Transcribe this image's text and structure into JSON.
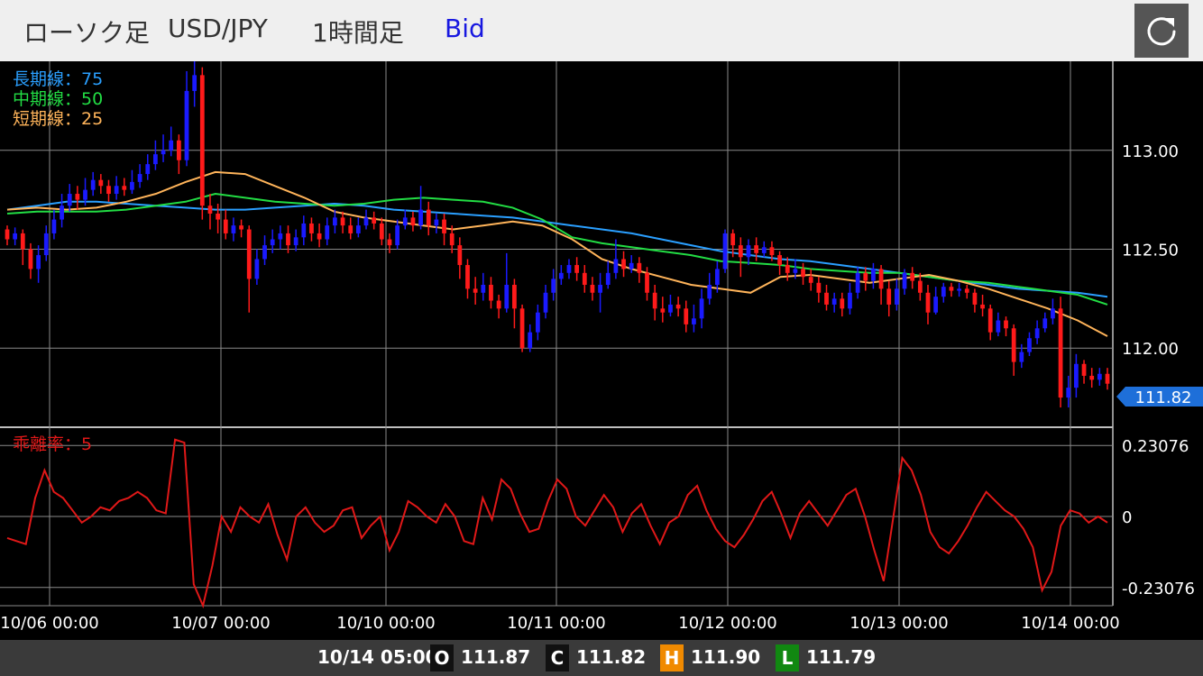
{
  "header": {
    "chart_kind": "ローソク足",
    "pair": "USD/JPY",
    "timeframe": "1時間足",
    "price_type": "Bid",
    "refresh_icon": "refresh-icon"
  },
  "legend": {
    "long_ma": "長期線：75",
    "mid_ma": "中期線：50",
    "short_ma": "短期線：25",
    "deviation": "乖離率：5"
  },
  "current_price_tag": "111.82",
  "footer": {
    "datetime": "10/14 05:00",
    "open_badge": "O",
    "open": "111.87",
    "close_badge": "C",
    "close": "111.82",
    "high_badge": "H",
    "high": "111.90",
    "low_badge": "L",
    "low": "111.79"
  },
  "colors": {
    "up": "#1a1aff",
    "down": "#ff1a1a",
    "long_ma": "#2a9fff",
    "mid_ma": "#22dd44",
    "short_ma": "#ffb45a",
    "deviation_line": "#e01818",
    "grid": "#8a8a8a",
    "tag": "#1e6fd9"
  },
  "chart_data": [
    {
      "type": "candlestick",
      "x_tick_labels": [
        "10/06 00:00",
        "10/07 00:00",
        "10/10 00:00",
        "10/11 00:00",
        "10/12 00:00",
        "10/13 00:00",
        "10/14 00:00"
      ],
      "y_tick_labels": [
        "113.00",
        "112.50",
        "112.00"
      ],
      "y_ticks": [
        113.0,
        112.5,
        112.0
      ],
      "ylim": [
        111.6,
        113.45
      ],
      "candles": [
        [
          112.6,
          112.55,
          112.62,
          112.52
        ],
        [
          112.55,
          112.58,
          112.61,
          112.52
        ],
        [
          112.58,
          112.5,
          112.6,
          112.42
        ],
        [
          112.5,
          112.4,
          112.53,
          112.35
        ],
        [
          112.4,
          112.47,
          112.52,
          112.33
        ],
        [
          112.47,
          112.58,
          112.62,
          112.44
        ],
        [
          112.58,
          112.65,
          112.7,
          112.55
        ],
        [
          112.65,
          112.72,
          112.78,
          112.61
        ],
        [
          112.72,
          112.78,
          112.83,
          112.69
        ],
        [
          112.78,
          112.75,
          112.82,
          112.7
        ],
        [
          112.75,
          112.8,
          112.86,
          112.72
        ],
        [
          112.8,
          112.85,
          112.89,
          112.77
        ],
        [
          112.85,
          112.82,
          112.88,
          112.78
        ],
        [
          112.82,
          112.78,
          112.85,
          112.74
        ],
        [
          112.78,
          112.82,
          112.87,
          112.75
        ],
        [
          112.82,
          112.8,
          112.86,
          112.77
        ],
        [
          112.8,
          112.84,
          112.9,
          112.78
        ],
        [
          112.84,
          112.88,
          112.93,
          112.81
        ],
        [
          112.88,
          112.93,
          112.98,
          112.85
        ],
        [
          112.93,
          112.98,
          113.05,
          112.9
        ],
        [
          112.98,
          113.0,
          113.08,
          112.94
        ],
        [
          113.0,
          113.05,
          113.12,
          112.97
        ],
        [
          113.05,
          112.95,
          113.08,
          112.88
        ],
        [
          112.95,
          113.3,
          113.4,
          112.92
        ],
        [
          113.3,
          113.38,
          113.45,
          113.22
        ],
        [
          113.38,
          112.72,
          113.42,
          112.65
        ],
        [
          112.72,
          112.68,
          112.78,
          112.6
        ],
        [
          112.68,
          112.65,
          112.73,
          112.58
        ],
        [
          112.65,
          112.58,
          112.7,
          112.55
        ],
        [
          112.58,
          112.62,
          112.66,
          112.54
        ],
        [
          112.62,
          112.6,
          112.65,
          112.56
        ],
        [
          112.6,
          112.35,
          112.62,
          112.18
        ],
        [
          112.35,
          112.45,
          112.5,
          112.32
        ],
        [
          112.45,
          112.52,
          112.57,
          112.42
        ],
        [
          112.52,
          112.55,
          112.6,
          112.48
        ],
        [
          112.55,
          112.58,
          112.62,
          112.5
        ],
        [
          112.58,
          112.52,
          112.62,
          112.48
        ],
        [
          112.52,
          112.56,
          112.6,
          112.49
        ],
        [
          112.56,
          112.63,
          112.67,
          112.52
        ],
        [
          112.63,
          112.58,
          112.66,
          112.54
        ],
        [
          112.58,
          112.55,
          112.63,
          112.51
        ],
        [
          112.55,
          112.62,
          112.66,
          112.52
        ],
        [
          112.62,
          112.66,
          112.7,
          112.58
        ],
        [
          112.66,
          112.62,
          112.69,
          112.58
        ],
        [
          112.62,
          112.58,
          112.66,
          112.55
        ],
        [
          112.58,
          112.62,
          112.66,
          112.56
        ],
        [
          112.62,
          112.66,
          112.7,
          112.6
        ],
        [
          112.66,
          112.63,
          112.69,
          112.6
        ],
        [
          112.63,
          112.55,
          112.66,
          112.52
        ],
        [
          112.55,
          112.52,
          112.58,
          112.48
        ],
        [
          112.52,
          112.62,
          112.65,
          112.5
        ],
        [
          112.62,
          112.66,
          112.7,
          112.6
        ],
        [
          112.66,
          112.62,
          112.69,
          112.59
        ],
        [
          112.62,
          112.7,
          112.82,
          112.6
        ],
        [
          112.7,
          112.62,
          112.74,
          112.57
        ],
        [
          112.62,
          112.65,
          112.68,
          112.58
        ],
        [
          112.65,
          112.58,
          112.68,
          112.52
        ],
        [
          112.58,
          112.52,
          112.62,
          112.48
        ],
        [
          112.52,
          112.42,
          112.56,
          112.35
        ],
        [
          112.42,
          112.3,
          112.45,
          112.25
        ],
        [
          112.3,
          112.28,
          112.36,
          112.22
        ],
        [
          112.28,
          112.32,
          112.38,
          112.24
        ],
        [
          112.32,
          112.24,
          112.36,
          112.2
        ],
        [
          112.24,
          112.2,
          112.27,
          112.15
        ],
        [
          112.2,
          112.32,
          112.48,
          112.18
        ],
        [
          112.32,
          112.2,
          112.35,
          112.1
        ],
        [
          112.2,
          112.0,
          112.22,
          111.98
        ],
        [
          112.0,
          112.08,
          112.12,
          111.98
        ],
        [
          112.08,
          112.18,
          112.22,
          112.04
        ],
        [
          112.18,
          112.28,
          112.32,
          112.15
        ],
        [
          112.28,
          112.35,
          112.4,
          112.24
        ],
        [
          112.35,
          112.38,
          112.42,
          112.32
        ],
        [
          112.38,
          112.42,
          112.45,
          112.35
        ],
        [
          112.42,
          112.38,
          112.46,
          112.34
        ],
        [
          112.38,
          112.32,
          112.42,
          112.28
        ],
        [
          112.32,
          112.28,
          112.36,
          112.24
        ],
        [
          112.28,
          112.32,
          112.38,
          112.18
        ],
        [
          112.32,
          112.38,
          112.44,
          112.3
        ],
        [
          112.38,
          112.45,
          112.55,
          112.35
        ],
        [
          112.45,
          112.4,
          112.49,
          112.36
        ],
        [
          112.4,
          112.43,
          112.47,
          112.38
        ],
        [
          112.43,
          112.38,
          112.46,
          112.33
        ],
        [
          112.38,
          112.28,
          112.41,
          112.24
        ],
        [
          112.28,
          112.2,
          112.32,
          112.14
        ],
        [
          112.2,
          112.18,
          112.26,
          112.13
        ],
        [
          112.18,
          112.22,
          112.27,
          112.16
        ],
        [
          112.22,
          112.2,
          112.26,
          112.16
        ],
        [
          112.2,
          112.12,
          112.24,
          112.08
        ],
        [
          112.12,
          112.15,
          112.22,
          112.08
        ],
        [
          112.15,
          112.25,
          112.3,
          112.1
        ],
        [
          112.25,
          112.32,
          112.38,
          112.22
        ],
        [
          112.32,
          112.4,
          112.44,
          112.28
        ],
        [
          112.4,
          112.58,
          112.6,
          112.38
        ],
        [
          112.58,
          112.52,
          112.6,
          112.46
        ],
        [
          112.52,
          112.46,
          112.56,
          112.36
        ],
        [
          112.46,
          112.52,
          112.55,
          112.42
        ],
        [
          112.52,
          112.48,
          112.56,
          112.44
        ],
        [
          112.48,
          112.51,
          112.54,
          112.46
        ],
        [
          112.51,
          112.47,
          112.54,
          112.44
        ],
        [
          112.47,
          112.42,
          112.49,
          112.37
        ],
        [
          112.42,
          112.38,
          112.46,
          112.34
        ],
        [
          112.38,
          112.4,
          112.45,
          112.35
        ],
        [
          112.4,
          112.36,
          112.43,
          112.32
        ],
        [
          112.36,
          112.33,
          112.4,
          112.29
        ],
        [
          112.33,
          112.28,
          112.36,
          112.23
        ],
        [
          112.28,
          112.22,
          112.32,
          112.19
        ],
        [
          112.22,
          112.25,
          112.28,
          112.18
        ],
        [
          112.25,
          112.2,
          112.28,
          112.16
        ],
        [
          112.2,
          112.28,
          112.33,
          112.17
        ],
        [
          112.28,
          112.38,
          112.41,
          112.25
        ],
        [
          112.38,
          112.34,
          112.41,
          112.29
        ],
        [
          112.34,
          112.4,
          112.43,
          112.3
        ],
        [
          112.4,
          112.3,
          112.42,
          112.22
        ],
        [
          112.3,
          112.22,
          112.34,
          112.16
        ],
        [
          112.22,
          112.3,
          112.35,
          112.19
        ],
        [
          112.3,
          112.38,
          112.4,
          112.27
        ],
        [
          112.38,
          112.34,
          112.41,
          112.3
        ],
        [
          112.34,
          112.28,
          112.38,
          112.24
        ],
        [
          112.28,
          112.18,
          112.32,
          112.12
        ],
        [
          112.18,
          112.26,
          112.31,
          112.17
        ],
        [
          112.26,
          112.31,
          112.33,
          112.23
        ],
        [
          112.31,
          112.29,
          112.33,
          112.26
        ],
        [
          112.29,
          112.3,
          112.33,
          112.26
        ],
        [
          112.3,
          112.28,
          112.32,
          112.25
        ],
        [
          112.28,
          112.22,
          112.3,
          112.18
        ],
        [
          112.22,
          112.2,
          112.27,
          112.16
        ],
        [
          112.2,
          112.08,
          112.22,
          112.04
        ],
        [
          112.08,
          112.14,
          112.18,
          112.06
        ],
        [
          112.14,
          112.1,
          112.16,
          112.06
        ],
        [
          112.1,
          111.93,
          112.12,
          111.86
        ],
        [
          111.93,
          111.98,
          112.02,
          111.9
        ],
        [
          111.98,
          112.05,
          112.08,
          111.96
        ],
        [
          112.05,
          112.1,
          112.14,
          112.02
        ],
        [
          112.1,
          112.15,
          112.18,
          112.08
        ],
        [
          112.15,
          112.2,
          112.25,
          112.12
        ],
        [
          112.2,
          111.75,
          112.26,
          111.7
        ],
        [
          111.75,
          111.8,
          111.86,
          111.7
        ],
        [
          111.8,
          111.92,
          111.97,
          111.75
        ],
        [
          111.92,
          111.86,
          111.94,
          111.82
        ],
        [
          111.86,
          111.84,
          111.9,
          111.8
        ],
        [
          111.84,
          111.87,
          111.9,
          111.81
        ],
        [
          111.87,
          111.82,
          111.9,
          111.79
        ]
      ],
      "series": [
        {
          "name": "長期線：75",
          "values": [
            112.7,
            112.72,
            112.74,
            112.74,
            112.73,
            112.72,
            112.71,
            112.7,
            112.7,
            112.71,
            112.72,
            112.73,
            112.72,
            112.7,
            112.69,
            112.68,
            112.67,
            112.66,
            112.64,
            112.62,
            112.6,
            112.58,
            112.55,
            112.52,
            112.49,
            112.47,
            112.45,
            112.44,
            112.42,
            112.4,
            112.38,
            112.36,
            112.34,
            112.32,
            112.3,
            112.29,
            112.28,
            112.26
          ]
        },
        {
          "name": "中期線：50",
          "values": [
            112.68,
            112.69,
            112.69,
            112.69,
            112.7,
            112.72,
            112.74,
            112.78,
            112.76,
            112.74,
            112.73,
            112.72,
            112.73,
            112.75,
            112.76,
            112.75,
            112.74,
            112.71,
            112.65,
            112.56,
            112.53,
            112.51,
            112.49,
            112.47,
            112.44,
            112.43,
            112.42,
            112.4,
            112.39,
            112.38,
            112.38,
            112.36,
            112.34,
            112.33,
            112.31,
            112.29,
            112.27,
            112.22
          ]
        },
        {
          "name": "短期線：25",
          "values": [
            112.7,
            112.71,
            112.7,
            112.71,
            112.74,
            112.78,
            112.84,
            112.89,
            112.88,
            112.82,
            112.76,
            112.69,
            112.66,
            112.64,
            112.62,
            112.6,
            112.62,
            112.64,
            112.62,
            112.55,
            112.45,
            112.4,
            112.36,
            112.32,
            112.3,
            112.28,
            112.36,
            112.37,
            112.35,
            112.33,
            112.35,
            112.37,
            112.34,
            112.3,
            112.25,
            112.2,
            112.14,
            112.06
          ]
        }
      ]
    },
    {
      "type": "line",
      "y_tick_labels": [
        "0.23076",
        "0",
        "-0.23076"
      ],
      "ylim": [
        -0.29,
        0.29
      ],
      "series": [
        {
          "name": "乖離率：5",
          "values": [
            -0.07,
            -0.08,
            -0.09,
            0.06,
            0.15,
            0.08,
            0.06,
            0.02,
            -0.02,
            0.0,
            0.03,
            0.02,
            0.05,
            0.06,
            0.08,
            0.06,
            0.02,
            0.01,
            0.25,
            0.24,
            -0.22,
            -0.29,
            -0.16,
            0.0,
            -0.05,
            0.03,
            0.0,
            -0.02,
            0.04,
            -0.06,
            -0.14,
            0.0,
            0.03,
            -0.02,
            -0.05,
            -0.03,
            0.02,
            0.03,
            -0.07,
            -0.03,
            0.0,
            -0.11,
            -0.05,
            0.05,
            0.03,
            0.0,
            -0.02,
            0.04,
            0.0,
            -0.08,
            -0.09,
            0.06,
            -0.01,
            0.12,
            0.09,
            0.01,
            -0.05,
            -0.04,
            0.05,
            0.12,
            0.09,
            0.0,
            -0.03,
            0.02,
            0.07,
            0.03,
            -0.05,
            0.01,
            0.04,
            -0.03,
            -0.09,
            -0.02,
            0.0,
            0.07,
            0.1,
            0.02,
            -0.04,
            -0.08,
            -0.1,
            -0.06,
            -0.01,
            0.05,
            0.08,
            0.01,
            -0.07,
            0.01,
            0.05,
            0.01,
            -0.03,
            0.02,
            0.07,
            0.09,
            0.0,
            -0.11,
            -0.21,
            -0.01,
            0.19,
            0.15,
            0.07,
            -0.05,
            -0.1,
            -0.12,
            -0.08,
            -0.03,
            0.03,
            0.08,
            0.05,
            0.02,
            0.0,
            -0.04,
            -0.1,
            -0.24,
            -0.18,
            -0.03,
            0.02,
            0.01,
            -0.02,
            0.0,
            -0.02
          ]
        }
      ]
    }
  ]
}
